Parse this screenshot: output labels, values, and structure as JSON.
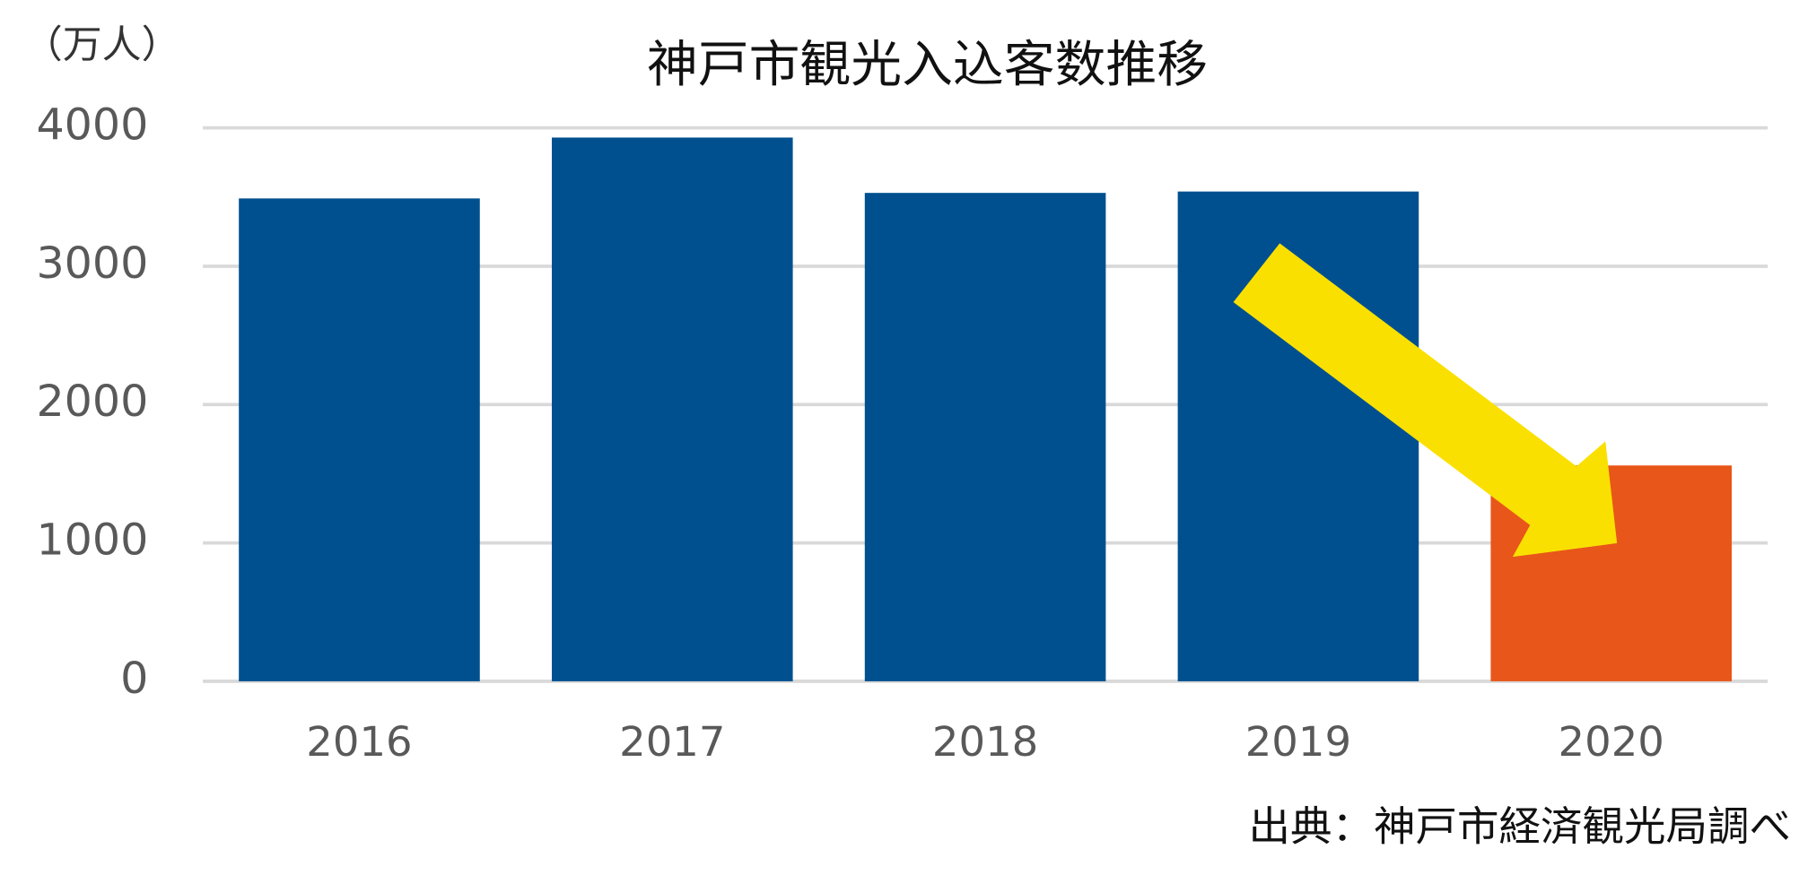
{
  "chart_data": {
    "type": "bar",
    "title": "神戸市観光入込客数推移",
    "y_label": "（万人）",
    "source": "出典：神戸市経済観光局調べ",
    "categories": [
      "2016",
      "2017",
      "2018",
      "2019",
      "2020"
    ],
    "values": [
      3490,
      3930,
      3530,
      3540,
      1560
    ],
    "colors": [
      "#00508f",
      "#00508f",
      "#00508f",
      "#00508f",
      "#e8561a"
    ],
    "ylim": [
      0,
      4000
    ],
    "yticks": [
      0,
      1000,
      2000,
      3000,
      4000
    ],
    "grid": true
  }
}
